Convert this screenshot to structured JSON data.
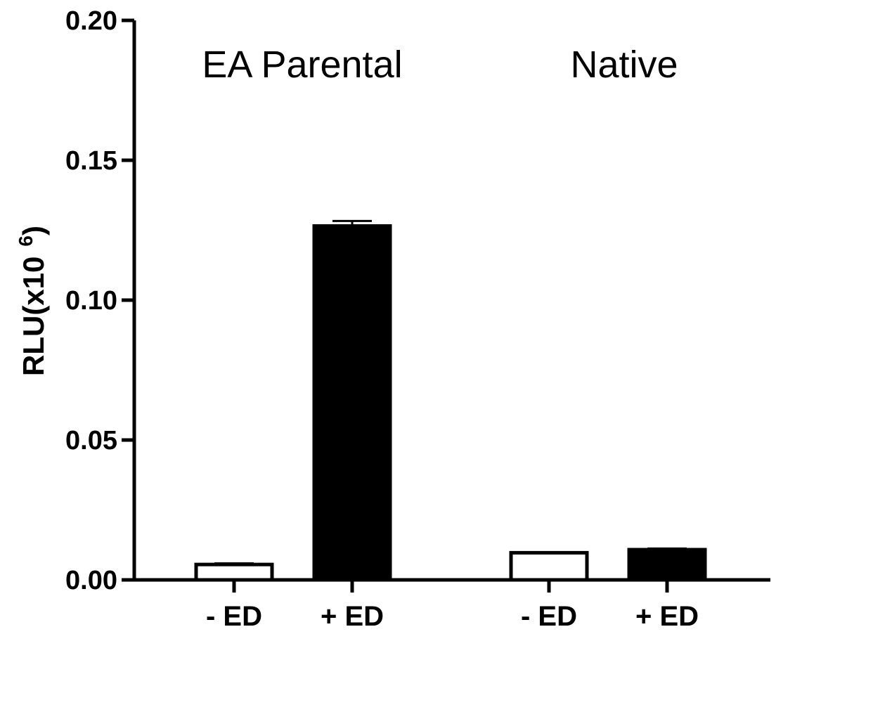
{
  "chart_data": {
    "type": "bar",
    "ylabel": "RLU(x10",
    "ylabel_exponent": "6",
    "ylabel_close": ")",
    "ylim": [
      0,
      0.2
    ],
    "yticks": [
      0.0,
      0.05,
      0.1,
      0.15,
      0.2
    ],
    "ytick_labels": [
      "0.00",
      "0.05",
      "0.10",
      "0.15",
      "0.20"
    ],
    "groups": [
      {
        "label": "EA Parental",
        "bars": [
          {
            "category": "- ED",
            "value": 0.0055,
            "error": 0.0004,
            "fill": "#ffffff"
          },
          {
            "category": "+ ED",
            "value": 0.1265,
            "error": 0.0018,
            "fill": "#000000"
          }
        ]
      },
      {
        "label": "Native",
        "bars": [
          {
            "category": "- ED",
            "value": 0.0097,
            "error": 0.0,
            "fill": "#ffffff"
          },
          {
            "category": "+ ED",
            "value": 0.0108,
            "error": 0.0004,
            "fill": "#000000"
          }
        ]
      }
    ],
    "grid": false,
    "legend": "none"
  }
}
